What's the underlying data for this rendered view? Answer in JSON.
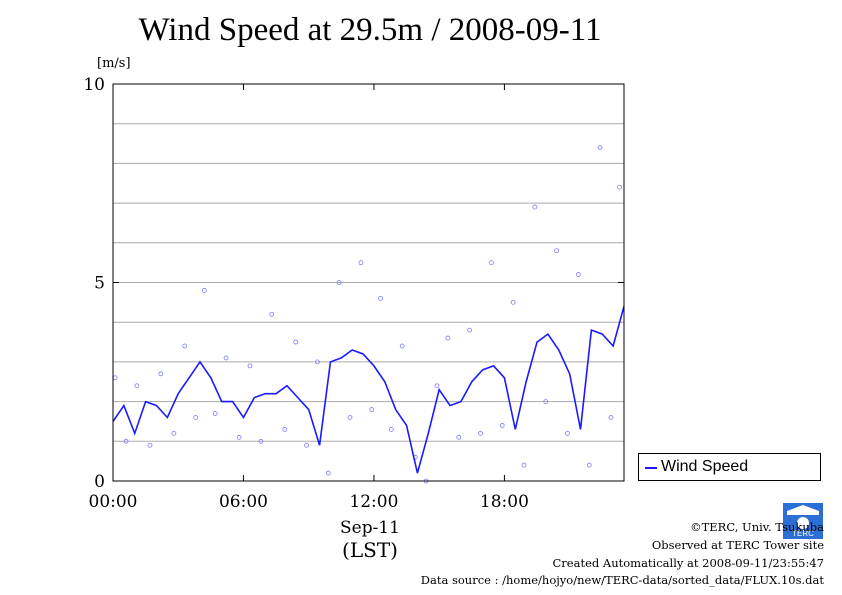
{
  "title": "Wind Speed at 29.5m / 2008-09-11",
  "unit_label": "[m/s]",
  "legend": {
    "label": "Wind Speed"
  },
  "x_axis": {
    "date_label": "Sep-11",
    "tz_label": "(LST)"
  },
  "credits": {
    "copyright": "©TERC, Univ. Tsukuba",
    "observed": "Observed at TERC Tower site",
    "created": "Created Automatically at 2008-09-11/23:55:47",
    "source": "Data source : /home/hojyo/new/TERC-data/sorted_data/FLUX.10s.dat"
  },
  "logo": {
    "icon": "terc-logo-icon",
    "text": "TERC"
  },
  "colors": {
    "line": "#1a1aff",
    "points": "#7b7bff",
    "grid": "#aaaaaa"
  },
  "chart_data": {
    "type": "line",
    "title": "Wind Speed at 29.5m / 2008-09-11",
    "xlabel": "Sep-11 (LST)",
    "ylabel": "[m/s]",
    "xlim": [
      0,
      23.5
    ],
    "ylim": [
      0,
      10
    ],
    "x_ticks": [
      "00:00",
      "06:00",
      "12:00",
      "18:00"
    ],
    "x_tick_hours": [
      0,
      6,
      12,
      18
    ],
    "y_ticks": [
      0,
      5,
      10
    ],
    "grid": true,
    "legend_position": "right",
    "series": [
      {
        "name": "Wind Speed",
        "x": [
          0,
          0.5,
          1,
          1.5,
          2,
          2.5,
          3,
          3.5,
          4,
          4.5,
          5,
          5.5,
          6,
          6.5,
          7,
          7.5,
          8,
          8.5,
          9,
          9.5,
          10,
          10.5,
          11,
          11.5,
          12,
          12.5,
          13,
          13.5,
          14,
          14.5,
          15,
          15.5,
          16,
          16.5,
          17,
          17.5,
          18,
          18.5,
          19,
          19.5,
          20,
          20.5,
          21,
          21.5,
          22,
          22.5,
          23,
          23.5
        ],
        "y": [
          1.5,
          1.9,
          1.2,
          2.0,
          1.9,
          1.6,
          2.2,
          2.6,
          3.0,
          2.6,
          2.0,
          2.0,
          1.6,
          2.1,
          2.2,
          2.2,
          2.4,
          2.1,
          1.8,
          0.9,
          3.0,
          3.1,
          3.3,
          3.2,
          2.9,
          2.5,
          1.8,
          1.4,
          0.2,
          1.2,
          2.3,
          1.9,
          2.0,
          2.5,
          2.8,
          2.9,
          2.6,
          1.3,
          2.5,
          3.5,
          3.7,
          3.3,
          2.7,
          1.3,
          3.8,
          3.7,
          3.4,
          4.4
        ]
      },
      {
        "name": "raw",
        "x": [
          0.1,
          0.6,
          1.1,
          1.7,
          2.2,
          2.8,
          3.3,
          3.8,
          4.2,
          4.7,
          5.2,
          5.8,
          6.3,
          6.8,
          7.3,
          7.9,
          8.4,
          8.9,
          9.4,
          9.9,
          10.4,
          10.9,
          11.4,
          11.9,
          12.3,
          12.8,
          13.3,
          13.9,
          14.4,
          14.9,
          15.4,
          15.9,
          16.4,
          16.9,
          17.4,
          17.9,
          18.4,
          18.9,
          19.4,
          19.9,
          20.4,
          20.9,
          21.4,
          21.9,
          22.4,
          22.9,
          23.3
        ],
        "y": [
          2.6,
          1.0,
          2.4,
          0.9,
          2.7,
          1.2,
          3.4,
          1.6,
          4.8,
          1.7,
          3.1,
          1.1,
          2.9,
          1.0,
          4.2,
          1.3,
          3.5,
          0.9,
          3.0,
          0.2,
          5.0,
          1.6,
          5.5,
          1.8,
          4.6,
          1.3,
          3.4,
          0.6,
          0.0,
          2.4,
          3.6,
          1.1,
          3.8,
          1.2,
          5.5,
          1.4,
          4.5,
          0.4,
          6.9,
          2.0,
          5.8,
          1.2,
          5.2,
          0.4,
          8.4,
          1.6,
          7.4
        ]
      }
    ]
  }
}
